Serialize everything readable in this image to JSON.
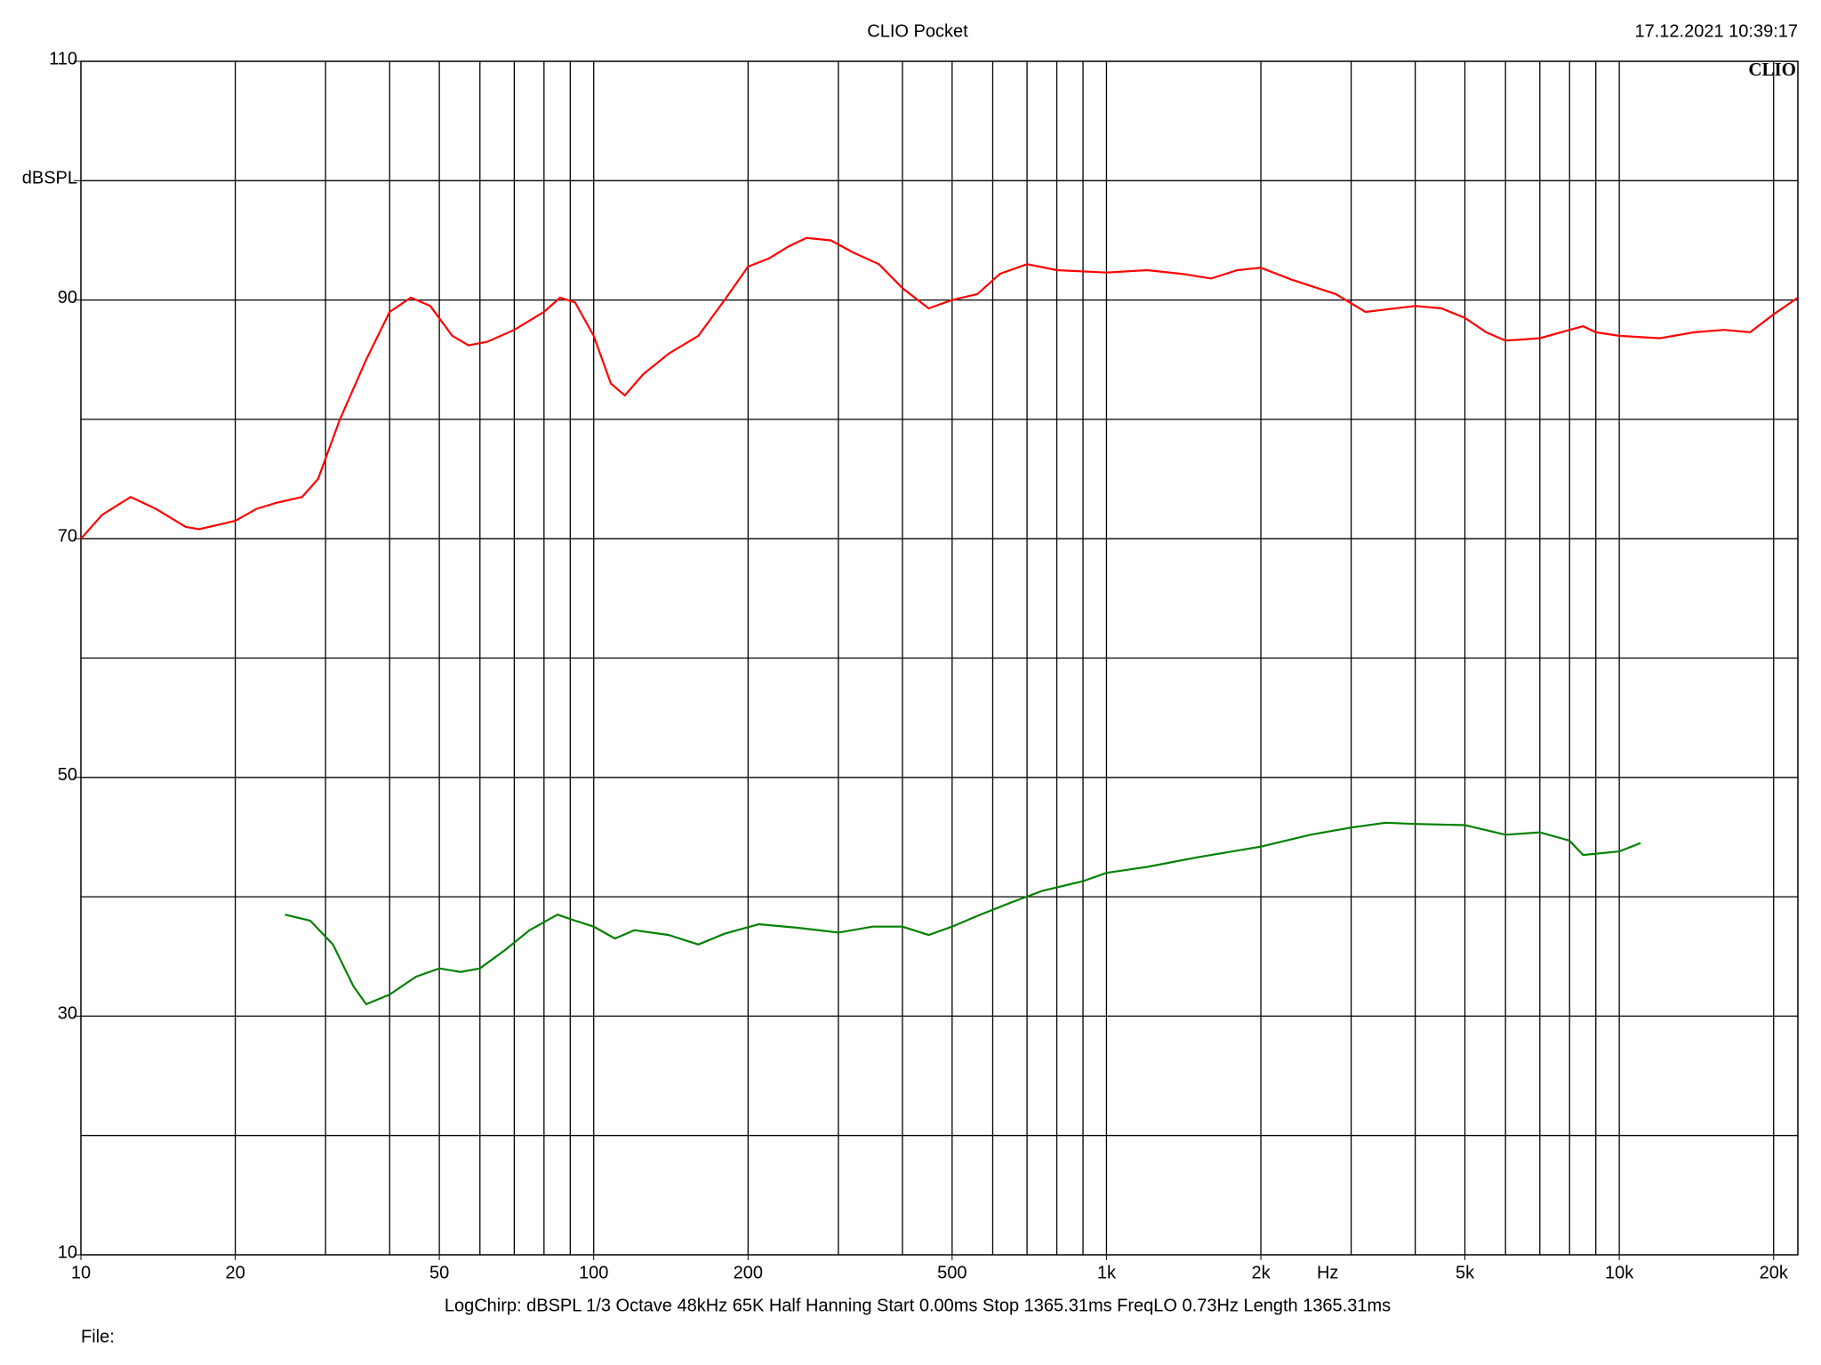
{
  "title": "CLIO Pocket",
  "timestamp": "17.12.2021 10:39:17",
  "logo": "CLIO",
  "footer": "LogChirp:  dBSPL   1/3 Octave   48kHz   65K   Half Hanning   Start 0.00ms    Stop 1365.31ms    FreqLO 0.73Hz    Length 1365.31ms",
  "file_label": "File:",
  "chart_data": {
    "type": "line",
    "log_x": true,
    "grid": true,
    "xlabel": "Hz",
    "xlim": [
      10,
      22300
    ],
    "ylim": [
      10,
      110
    ],
    "xticks": [
      10,
      20,
      50,
      100,
      200,
      500,
      {
        "value": 1000,
        "label": "1k"
      },
      {
        "value": 2000,
        "label": "2k"
      },
      {
        "value": 5000,
        "label": "5k"
      },
      {
        "value": 10000,
        "label": "10k"
      },
      {
        "value": 20000,
        "label": "20k"
      }
    ],
    "x_gridlines": [
      20,
      30,
      40,
      50,
      60,
      70,
      80,
      90,
      100,
      200,
      300,
      400,
      500,
      600,
      700,
      800,
      900,
      1000,
      2000,
      3000,
      4000,
      5000,
      6000,
      7000,
      8000,
      9000,
      10000,
      20000
    ],
    "yticks": [
      10,
      30,
      50,
      70,
      90,
      {
        "value": 100,
        "label": "dBSPL"
      },
      110
    ],
    "y_gridlines": [
      20,
      30,
      40,
      50,
      60,
      70,
      80,
      90,
      100
    ],
    "series": [
      {
        "color": "#ff0000",
        "x": [
          10,
          11,
          12.5,
          14,
          16,
          17,
          20,
          22,
          24,
          27,
          29,
          32,
          36,
          40,
          44,
          48,
          53,
          57,
          62,
          70,
          80,
          86,
          92,
          100,
          108,
          115,
          125,
          140,
          160,
          180,
          200,
          220,
          240,
          260,
          290,
          320,
          360,
          400,
          450,
          500,
          560,
          620,
          700,
          800,
          1000,
          1200,
          1400,
          1600,
          1800,
          2000,
          2300,
          2800,
          3200,
          3500,
          4000,
          4500,
          5000,
          5500,
          6000,
          7000,
          8000,
          8500,
          9000,
          10000,
          12000,
          14000,
          16000,
          18000,
          20000,
          22300
        ],
        "values": [
          70,
          72,
          73.5,
          72.5,
          71,
          70.8,
          71.5,
          72.5,
          73,
          73.5,
          75,
          80,
          85,
          89,
          90.2,
          89.5,
          87,
          86.2,
          86.5,
          87.5,
          89,
          90.2,
          89.8,
          87,
          83,
          82,
          83.8,
          85.5,
          87,
          90,
          92.8,
          93.5,
          94.5,
          95.2,
          95,
          94,
          93,
          91,
          89.3,
          90,
          90.5,
          92.2,
          93,
          92.5,
          92.3,
          92.5,
          92.2,
          91.8,
          92.5,
          92.7,
          91.7,
          90.5,
          89,
          89.2,
          89.5,
          89.3,
          88.5,
          87.3,
          86.6,
          86.8,
          87.5,
          87.8,
          87.3,
          87,
          86.8,
          87.3,
          87.5,
          87.3,
          88.8,
          90.2
        ]
      },
      {
        "color": "#008000",
        "x": [
          25,
          28,
          31,
          34,
          36,
          40,
          45,
          50,
          55,
          60,
          67,
          75,
          85,
          92,
          100,
          110,
          120,
          140,
          160,
          180,
          210,
          250,
          300,
          350,
          400,
          450,
          500,
          560,
          650,
          750,
          900,
          1000,
          1200,
          1500,
          2000,
          2500,
          3000,
          3500,
          4000,
          5000,
          6000,
          7000,
          8000,
          8500,
          10000,
          11000
        ],
        "values": [
          38.5,
          38,
          36,
          32.5,
          31,
          31.8,
          33.3,
          34,
          33.7,
          34,
          35.5,
          37.2,
          38.5,
          38,
          37.5,
          36.5,
          37.2,
          36.8,
          36,
          36.9,
          37.7,
          37.4,
          37,
          37.5,
          37.5,
          36.8,
          37.5,
          38.4,
          39.5,
          40.5,
          41.3,
          42,
          42.5,
          43.3,
          44.2,
          45.2,
          45.8,
          46.2,
          46.1,
          46,
          45.2,
          45.4,
          44.7,
          43.5,
          43.8,
          44.5
        ]
      }
    ]
  }
}
